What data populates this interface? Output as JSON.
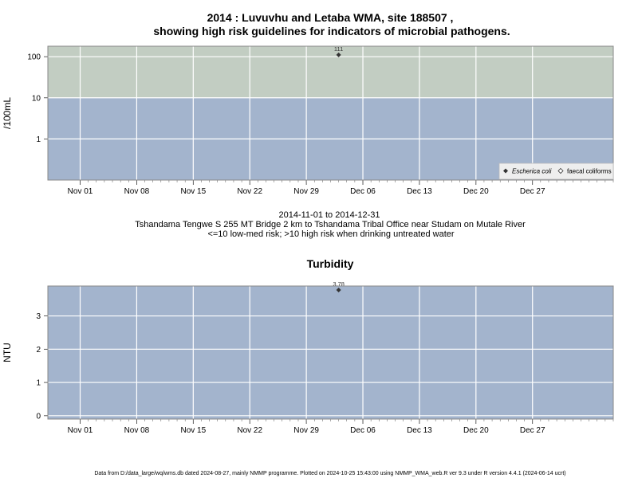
{
  "chart_data": [
    {
      "type": "scatter",
      "title_line1": "2014 : Luvuvhu and Letaba WMA, site 188507 ,",
      "title_line2": "showing high risk guidelines for indicators of microbial pathogens.",
      "ylabel": "/100mL",
      "yscale": "log",
      "ylim": [
        0.1,
        180
      ],
      "yticks": [
        {
          "value": 1,
          "label": "1"
        },
        {
          "value": 10,
          "label": "10"
        },
        {
          "value": 100,
          "label": "100"
        }
      ],
      "threshold": 10,
      "band_colors": {
        "high": "#c2cdc2",
        "low": "#a3b4cd"
      },
      "xlim": [
        "2014-10-28",
        "2015-01-06"
      ],
      "xticks": [
        {
          "date": "2014-11-01",
          "label": "Nov 01"
        },
        {
          "date": "2014-11-08",
          "label": "Nov 08"
        },
        {
          "date": "2014-11-15",
          "label": "Nov 15"
        },
        {
          "date": "2014-11-22",
          "label": "Nov 22"
        },
        {
          "date": "2014-11-29",
          "label": "Nov 29"
        },
        {
          "date": "2014-12-06",
          "label": "Dec 06"
        },
        {
          "date": "2014-12-13",
          "label": "Dec 13"
        },
        {
          "date": "2014-12-20",
          "label": "Dec 20"
        },
        {
          "date": "2014-12-27",
          "label": "Dec 27"
        }
      ],
      "series": [
        {
          "name": "Escherica coli",
          "marker": "filled-diamond",
          "points": [
            {
              "date": "2014-12-03",
              "value": 111,
              "label": "111"
            }
          ]
        },
        {
          "name": "faecal coliforms",
          "marker": "open-diamond",
          "points": []
        }
      ],
      "legend_position": "bottom-right",
      "grid": true
    },
    {
      "type": "scatter",
      "title": "Turbidity",
      "ylabel": "NTU",
      "ylim": [
        -0.1,
        3.9
      ],
      "yticks": [
        {
          "value": 0,
          "label": "0"
        },
        {
          "value": 1,
          "label": "1"
        },
        {
          "value": 2,
          "label": "2"
        },
        {
          "value": 3,
          "label": "3"
        }
      ],
      "band_color": "#a3b4cd",
      "xlim": [
        "2014-10-28",
        "2015-01-06"
      ],
      "xticks": [
        {
          "date": "2014-11-01",
          "label": "Nov 01"
        },
        {
          "date": "2014-11-08",
          "label": "Nov 08"
        },
        {
          "date": "2014-11-15",
          "label": "Nov 15"
        },
        {
          "date": "2014-11-22",
          "label": "Nov 22"
        },
        {
          "date": "2014-11-29",
          "label": "Nov 29"
        },
        {
          "date": "2014-12-06",
          "label": "Dec 06"
        },
        {
          "date": "2014-12-13",
          "label": "Dec 13"
        },
        {
          "date": "2014-12-20",
          "label": "Dec 20"
        },
        {
          "date": "2014-12-27",
          "label": "Dec 27"
        }
      ],
      "series": [
        {
          "marker": "filled-diamond",
          "points": [
            {
              "date": "2014-12-03",
              "value": 3.78,
              "label": "3.78"
            }
          ]
        }
      ],
      "grid": true
    }
  ],
  "caption": {
    "date_range": "2014-11-01 to 2014-12-31",
    "location": "Tshandama Tengwe S 255 MT Bridge 2 km to Tshandama Tribal Office near Studam on Mutale River",
    "risk_note": "<=10 low-med risk; >10 high risk when drinking untreated water"
  },
  "footer": "Data from D:/data_large/wq/wms.db dated 2024-08-27, mainly NMMP programme. Plotted on 2024-10-25 15:43:00 using NMMP_WMA_web.R ver 9.3 under R version 4.4.1 (2024-06-14 ucrt)"
}
